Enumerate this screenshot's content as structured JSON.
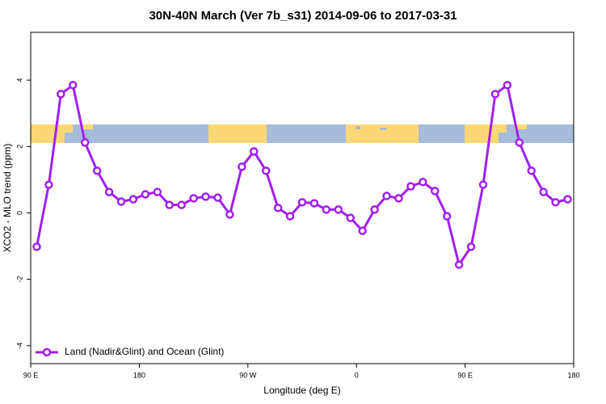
{
  "chart_data": {
    "type": "line",
    "title": "30N-40N March (Ver 7b_s31)   2014-09-06 to 2017-03-31",
    "x_label": "Longitude (deg E)",
    "y_label": "XCO2 - MLO trend (ppm)",
    "x": [
      95,
      105,
      115,
      125,
      135,
      145,
      155,
      165,
      175,
      185,
      195,
      205,
      215,
      225,
      235,
      245,
      255,
      265,
      275,
      285,
      295,
      305,
      315,
      325,
      335,
      345,
      355,
      365,
      375,
      385,
      395,
      405,
      415,
      425,
      435,
      445,
      455,
      465,
      475,
      485,
      495,
      505,
      515,
      525,
      535
    ],
    "series": [
      {
        "name": "Land (Nadir&Glint) and Ocean (Glint)",
        "color": "#a020f0",
        "values": [
          -1.02,
          0.85,
          3.58,
          3.85,
          2.12,
          1.27,
          0.63,
          0.34,
          0.41,
          0.56,
          0.63,
          0.24,
          0.24,
          0.44,
          0.49,
          0.46,
          -0.05,
          1.39,
          1.85,
          1.27,
          0.15,
          -0.1,
          0.32,
          0.29,
          0.1,
          0.1,
          -0.15,
          -0.54,
          0.1,
          0.51,
          0.44,
          0.8,
          0.93,
          0.66,
          -0.1,
          -1.56,
          -1.02,
          0.85,
          3.58,
          3.85,
          2.12,
          1.27,
          0.63,
          0.32,
          0.41
        ]
      }
    ],
    "xlim": [
      90,
      540
    ],
    "xticks": [
      {
        "value": 90,
        "label": "90 E"
      },
      180,
      {
        "value": 270,
        "label": "90 W"
      },
      {
        "value": 360,
        "label": "0"
      },
      {
        "value": 450,
        "label": "90 E"
      },
      {
        "value": 540,
        "label": "180"
      }
    ],
    "ylim": [
      -4.54,
      5.44
    ],
    "yticks": [
      -4,
      -2,
      0,
      2,
      4
    ],
    "legend": "bottom-left"
  }
}
